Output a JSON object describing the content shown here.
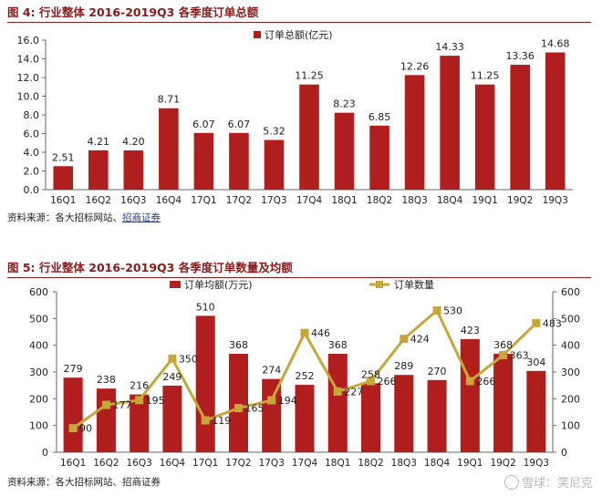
{
  "figures": [
    {
      "title": "图 4:  行业整体  2016-2019Q3  各季度订单总额",
      "source": {
        "prefix": "资料来源：各大招标网站、",
        "link": "招商证券"
      }
    },
    {
      "title": "图 5:  行业整体  2016-2019Q3  各季度订单数量及均额",
      "source": {
        "prefix": "资料来源：各大招标网站、招商证券",
        "link": ""
      }
    }
  ],
  "watermark": "雪球：笑尼克",
  "colors": {
    "bar": "#b01e1e",
    "line": "#c8a73a",
    "axis": "#666666",
    "title": "#8b1a1a"
  },
  "chart_data": [
    {
      "type": "bar",
      "title": "",
      "categories": [
        "16Q1",
        "16Q2",
        "16Q3",
        "16Q4",
        "17Q1",
        "17Q2",
        "17Q3",
        "17Q4",
        "18Q1",
        "18Q2",
        "18Q3",
        "18Q4",
        "19Q1",
        "19Q2",
        "19Q3"
      ],
      "series": [
        {
          "name": "订单总额(亿元)",
          "values": [
            2.51,
            4.21,
            4.2,
            8.71,
            6.07,
            6.07,
            5.32,
            11.25,
            8.23,
            6.85,
            12.26,
            14.33,
            11.25,
            13.36,
            14.68
          ]
        }
      ],
      "ylim": [
        0,
        16
      ],
      "yticks": [
        "0.0",
        "2.0",
        "4.0",
        "6.0",
        "8.0",
        "10.0",
        "12.0",
        "14.0",
        "16.0"
      ],
      "labels": [
        "2.51",
        "4.21",
        "4.20",
        "8.71",
        "6.07",
        "6.07",
        "5.32",
        "11.25",
        "8.23",
        "6.85",
        "12.26",
        "14.33",
        "11.25",
        "13.36",
        "14.68"
      ],
      "legend": "top-center",
      "grid": false
    },
    {
      "type": "bar",
      "title": "",
      "categories": [
        "16Q1",
        "16Q2",
        "16Q3",
        "16Q4",
        "17Q1",
        "17Q2",
        "17Q3",
        "17Q4",
        "18Q1",
        "18Q2",
        "18Q3",
        "18Q4",
        "19Q1",
        "19Q2",
        "19Q3"
      ],
      "series": [
        {
          "name": "订单均额(万元)",
          "type": "bar",
          "axis": "left",
          "values": [
            279,
            238,
            216,
            249,
            510,
            368,
            274,
            252,
            368,
            258,
            289,
            270,
            423,
            368,
            304
          ],
          "labels": [
            "279",
            "238",
            "216",
            "249",
            "510",
            "368",
            "274",
            "252",
            "368",
            "258",
            "289",
            "270",
            "423",
            "368",
            "304"
          ]
        },
        {
          "name": "订单数量",
          "type": "line",
          "axis": "right",
          "values": [
            90,
            177,
            195,
            350,
            119,
            165,
            194,
            446,
            227,
            266,
            424,
            530,
            266,
            363,
            483
          ],
          "labels": [
            "90",
            "177",
            "195",
            "350",
            "119",
            "165",
            "194",
            "446",
            "227",
            "266",
            "424",
            "530",
            "266",
            "363",
            "483"
          ]
        }
      ],
      "ylim": [
        0,
        600
      ],
      "y2lim": [
        0,
        600
      ],
      "yticks": [
        "0",
        "100",
        "200",
        "300",
        "400",
        "500",
        "600"
      ],
      "y2ticks": [
        "0",
        "100",
        "200",
        "300",
        "400",
        "500",
        "600"
      ],
      "legend": "top-center",
      "grid": false
    }
  ]
}
